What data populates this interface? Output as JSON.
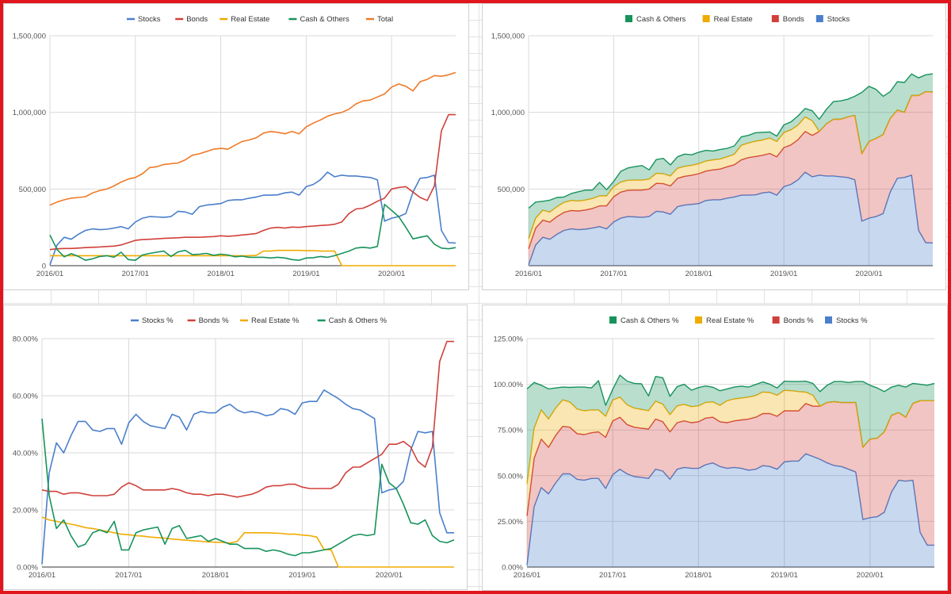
{
  "chart_data": [
    {
      "id": "tl",
      "type": "line",
      "title": "",
      "legend_position": "top",
      "x": [
        "2016/01",
        "2016/02",
        "2016/03",
        "2016/04",
        "2016/05",
        "2016/06",
        "2016/07",
        "2016/08",
        "2016/09",
        "2016/10",
        "2016/11",
        "2016/12",
        "2017/01",
        "2017/02",
        "2017/03",
        "2017/04",
        "2017/05",
        "2017/06",
        "2017/07",
        "2017/08",
        "2017/09",
        "2017/10",
        "2017/11",
        "2017/12",
        "2018/01",
        "2018/02",
        "2018/03",
        "2018/04",
        "2018/05",
        "2018/06",
        "2018/07",
        "2018/08",
        "2018/09",
        "2018/10",
        "2018/11",
        "2018/12",
        "2019/01",
        "2019/02",
        "2019/03",
        "2019/04",
        "2019/05",
        "2019/06",
        "2019/07",
        "2019/08",
        "2019/09",
        "2019/10",
        "2019/11",
        "2019/12",
        "2020/01",
        "2020/02",
        "2020/03",
        "2020/04",
        "2020/05",
        "2020/06",
        "2020/07",
        "2020/08",
        "2020/09",
        "2020/10"
      ],
      "x_tick_labels": [
        "2016/01",
        "2017/01",
        "2018/01",
        "2019/01",
        "2020/01"
      ],
      "y_ticks": [
        0,
        500000,
        1000000,
        1500000
      ],
      "y_tick_labels": [
        "0",
        "500,000",
        "1,000,000",
        "1,500,000"
      ],
      "ylim": [
        0,
        1500000
      ],
      "series": [
        {
          "name": "Stocks",
          "color": "#4a7fcb",
          "values": [
            5000,
            135000,
            185000,
            172000,
            205000,
            230000,
            240000,
            235000,
            238000,
            245000,
            255000,
            240000,
            285000,
            310000,
            320000,
            318000,
            315000,
            320000,
            355000,
            350000,
            335000,
            385000,
            395000,
            400000,
            405000,
            425000,
            430000,
            430000,
            440000,
            448000,
            460000,
            460000,
            462000,
            475000,
            480000,
            460000,
            515000,
            530000,
            560000,
            610000,
            580000,
            590000,
            585000,
            585000,
            580000,
            575000,
            560000,
            290000,
            310000,
            320000,
            340000,
            480000,
            570000,
            575000,
            590000,
            230000,
            150000,
            148000
          ]
        },
        {
          "name": "Bonds",
          "color": "#d0403a",
          "values": [
            105000,
            110000,
            112000,
            112000,
            115000,
            118000,
            120000,
            122000,
            125000,
            128000,
            135000,
            150000,
            165000,
            170000,
            172000,
            175000,
            178000,
            180000,
            182000,
            185000,
            185000,
            185000,
            188000,
            190000,
            195000,
            192000,
            195000,
            200000,
            205000,
            210000,
            230000,
            245000,
            250000,
            245000,
            252000,
            250000,
            255000,
            258000,
            262000,
            265000,
            270000,
            285000,
            340000,
            370000,
            375000,
            395000,
            420000,
            440000,
            500000,
            510000,
            515000,
            480000,
            445000,
            425000,
            520000,
            880000,
            985000,
            985000
          ]
        },
        {
          "name": "Real Estate",
          "color": "#f0ab00",
          "values": [
            65000,
            65000,
            65000,
            65000,
            65000,
            65000,
            65000,
            65000,
            65000,
            65000,
            65000,
            65000,
            65000,
            65000,
            65000,
            65000,
            65000,
            65000,
            65000,
            65000,
            65000,
            65000,
            65000,
            65000,
            65000,
            65000,
            65000,
            65000,
            65000,
            68000,
            95000,
            95000,
            100000,
            100000,
            100000,
            100000,
            98000,
            98000,
            95000,
            95000,
            95000,
            0,
            0,
            0,
            0,
            0,
            0,
            0,
            0,
            0,
            0,
            0,
            0,
            0,
            0,
            0,
            0,
            0
          ]
        },
        {
          "name": "Cash & Others",
          "color": "#17935c",
          "values": [
            200000,
            105000,
            58000,
            78000,
            60000,
            35000,
            45000,
            60000,
            65000,
            55000,
            88000,
            40000,
            35000,
            70000,
            80000,
            88000,
            95000,
            60000,
            90000,
            100000,
            72000,
            75000,
            80000,
            68000,
            75000,
            70000,
            58000,
            62000,
            55000,
            55000,
            55000,
            50000,
            55000,
            50000,
            40000,
            35000,
            50000,
            52000,
            60000,
            55000,
            65000,
            80000,
            95000,
            115000,
            120000,
            115000,
            125000,
            400000,
            360000,
            320000,
            250000,
            175000,
            185000,
            195000,
            140000,
            115000,
            110000,
            118000
          ]
        },
        {
          "name": "Total",
          "color": "#ef7a27",
          "values": [
            395000,
            415000,
            430000,
            440000,
            445000,
            450000,
            475000,
            490000,
            500000,
            520000,
            545000,
            565000,
            575000,
            600000,
            640000,
            645000,
            660000,
            665000,
            670000,
            690000,
            720000,
            730000,
            745000,
            760000,
            765000,
            760000,
            785000,
            810000,
            820000,
            835000,
            865000,
            875000,
            870000,
            860000,
            875000,
            860000,
            905000,
            930000,
            950000,
            975000,
            990000,
            1000000,
            1020000,
            1055000,
            1075000,
            1080000,
            1100000,
            1120000,
            1165000,
            1185000,
            1170000,
            1140000,
            1200000,
            1215000,
            1240000,
            1235000,
            1245000,
            1260000
          ]
        }
      ]
    },
    {
      "id": "tr",
      "type": "area",
      "stacked": true,
      "legend_position": "top",
      "x_tick_labels": [
        "2016/01",
        "2017/01",
        "2018/01",
        "2019/01",
        "2020/01"
      ],
      "y_ticks": [
        500000,
        1000000,
        1500000
      ],
      "y_tick_labels": [
        "500,000",
        "1,000,000",
        "1,500,000"
      ],
      "ylim": [
        0,
        1500000
      ],
      "legend_order": [
        "Cash & Others",
        "Real Estate",
        "Bonds",
        "Stocks"
      ],
      "stack_order": [
        "Stocks",
        "Bonds",
        "Real Estate",
        "Cash & Others"
      ],
      "source_series_from": "tl",
      "colors": {
        "Stocks": "#4a7fcb",
        "Bonds": "#d0403a",
        "Real Estate": "#f0ab00",
        "Cash & Others": "#17935c"
      }
    },
    {
      "id": "bl",
      "type": "line",
      "legend_position": "top",
      "x_tick_labels": [
        "2016/01",
        "2017/01",
        "2018/01",
        "2019/01",
        "2020/01"
      ],
      "y_ticks": [
        0,
        20,
        40,
        60,
        80
      ],
      "y_tick_labels": [
        "0.00%",
        "20.00%",
        "40.00%",
        "60.00%",
        "80.00%"
      ],
      "ylim": [
        0,
        80
      ],
      "series": [
        {
          "name": "Stocks %",
          "color": "#4a7fcb",
          "values": [
            1.0,
            33.0,
            43.5,
            40.0,
            46.0,
            51.0,
            51.0,
            48.0,
            47.5,
            48.5,
            48.5,
            43.0,
            50.5,
            53.5,
            51.0,
            49.5,
            49.0,
            48.5,
            53.5,
            52.5,
            48.0,
            53.5,
            54.5,
            54.0,
            54.0,
            56.0,
            57.0,
            55.0,
            54.0,
            54.5,
            54.0,
            53.0,
            53.5,
            55.5,
            55.0,
            53.5,
            57.5,
            58.0,
            58.0,
            62.0,
            60.5,
            59.0,
            57.0,
            55.5,
            55.0,
            53.5,
            52.0,
            26.0,
            27.0,
            27.5,
            30.0,
            41.0,
            47.5,
            47.0,
            47.5,
            19.0,
            12.0,
            12.0
          ]
        },
        {
          "name": "Bonds %",
          "color": "#d0403a",
          "values": [
            27.0,
            26.5,
            26.5,
            25.5,
            26.0,
            26.0,
            25.5,
            25.0,
            25.0,
            25.0,
            25.5,
            28.0,
            29.5,
            28.5,
            27.0,
            27.0,
            27.0,
            27.0,
            27.5,
            27.0,
            26.0,
            25.5,
            25.5,
            25.0,
            25.5,
            25.5,
            25.0,
            24.5,
            25.0,
            25.5,
            26.5,
            28.0,
            28.5,
            28.5,
            29.0,
            29.0,
            28.0,
            27.5,
            27.5,
            27.5,
            27.5,
            29.0,
            33.0,
            35.0,
            35.0,
            36.5,
            38.0,
            39.5,
            43.0,
            43.0,
            44.0,
            42.0,
            37.0,
            35.0,
            42.0,
            72.0,
            79.0,
            79.0
          ]
        },
        {
          "name": "Real Estate %",
          "color": "#f0ab00",
          "values": [
            17.5,
            16.5,
            16.0,
            15.5,
            15.0,
            14.5,
            13.8,
            13.5,
            13.0,
            12.5,
            12.0,
            11.5,
            11.3,
            11.0,
            10.8,
            10.5,
            10.3,
            10.1,
            9.8,
            9.6,
            9.4,
            9.2,
            9.0,
            8.8,
            8.7,
            8.6,
            8.4,
            9.0,
            12.0,
            12.0,
            12.0,
            12.0,
            11.9,
            11.8,
            11.5,
            11.5,
            11.2,
            11.0,
            10.5,
            6.2,
            6.0,
            0,
            0,
            0,
            0,
            0,
            0,
            0,
            0,
            0,
            0,
            0,
            0,
            0,
            0,
            0,
            0,
            0
          ]
        },
        {
          "name": "Cash & Others %",
          "color": "#17935c",
          "values": [
            52.0,
            25.0,
            13.5,
            16.5,
            11.0,
            7.0,
            8.0,
            12.0,
            13.0,
            12.0,
            16.0,
            6.0,
            6.0,
            12.0,
            13.0,
            13.5,
            14.0,
            8.0,
            13.5,
            14.5,
            10.0,
            10.5,
            11.0,
            9.0,
            10.0,
            9.0,
            8.0,
            8.0,
            6.5,
            6.5,
            6.5,
            5.5,
            6.0,
            5.5,
            4.5,
            4.0,
            5.0,
            5.0,
            5.5,
            6.0,
            6.5,
            8.0,
            9.5,
            11.0,
            11.5,
            11.0,
            11.5,
            36.0,
            29.5,
            27.5,
            22.0,
            15.5,
            15.0,
            16.5,
            11.0,
            9.0,
            8.5,
            9.5
          ]
        }
      ]
    },
    {
      "id": "br",
      "type": "area",
      "stacked": true,
      "legend_position": "top",
      "x_tick_labels": [
        "2016/01",
        "2017/01",
        "2018/01",
        "2019/01",
        "2020/01"
      ],
      "y_ticks": [
        0,
        25,
        50,
        75,
        100,
        125
      ],
      "y_tick_labels": [
        "0.00%",
        "25.00%",
        "50.00%",
        "75.00%",
        "100.00%",
        "125.00%"
      ],
      "ylim": [
        0,
        125
      ],
      "legend_order": [
        "Cash & Others %",
        "Real Estate %",
        "Bonds %",
        "Stocks %"
      ],
      "stack_order": [
        "Stocks %",
        "Bonds %",
        "Real Estate %",
        "Cash & Others %"
      ],
      "source_series_from": "bl",
      "colors": {
        "Stocks %": "#4a7fcb",
        "Bonds %": "#d0403a",
        "Real Estate %": "#f0ab00",
        "Cash & Others %": "#17935c"
      }
    }
  ]
}
